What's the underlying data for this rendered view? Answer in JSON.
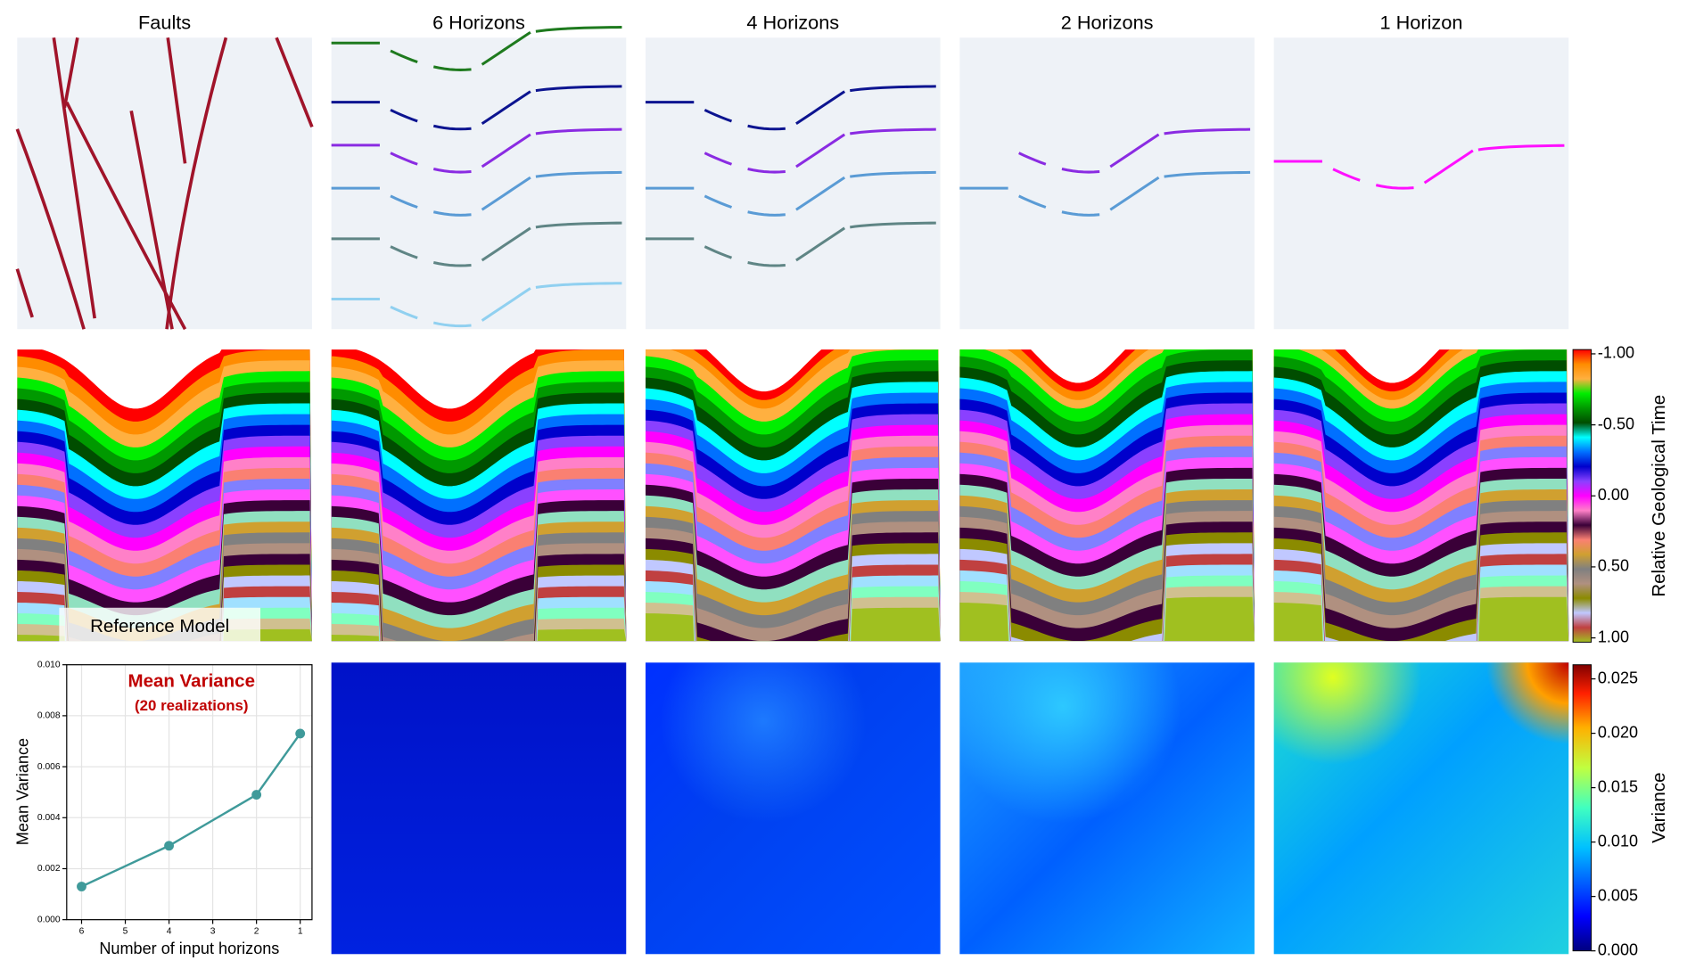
{
  "columns": [
    "Faults",
    "6 Horizons",
    "4 Horizons",
    "2 Horizons",
    "1 Horizon"
  ],
  "reference_label": "Reference Model",
  "chart_data": [
    {
      "type": "line",
      "title": "Mean Variance",
      "subtitle": "(20 realizations)",
      "x_label": "Number of input horizons",
      "y_label": "Mean Variance",
      "series": [
        {
          "name": "Mean Variance",
          "color": "#3f9a9a",
          "x": [
            6,
            4,
            2,
            1
          ],
          "values": [
            0.0013,
            0.0029,
            0.0049,
            0.0073
          ]
        }
      ],
      "xlim": [
        6.34,
        0.73
      ],
      "xticks": [
        6,
        5,
        4,
        3,
        2,
        1
      ],
      "ylim": [
        0,
        0.01
      ],
      "yticks": [
        {
          "value": 0,
          "label": "0.000"
        },
        {
          "value": 0.002,
          "label": "0.002"
        },
        {
          "value": 0.004,
          "label": "0.004"
        },
        {
          "value": 0.006,
          "label": "0.006"
        },
        {
          "value": 0.008,
          "label": "0.008"
        },
        {
          "value": 0.01,
          "label": "0.010"
        }
      ],
      "grid": true
    },
    {
      "type": "colorbar",
      "label": "Relative Geological Time",
      "ylim": [
        1.03,
        -1.03
      ],
      "yticks": [
        {
          "value": -1,
          "label": "-1.00"
        },
        {
          "value": -0.5,
          "label": "-0.50"
        },
        {
          "value": 0,
          "label": "0.00"
        },
        {
          "value": 0.5,
          "label": "0.50"
        },
        {
          "value": 1,
          "label": "1.00"
        }
      ]
    },
    {
      "type": "colorbar",
      "label": "Variance",
      "ylim": [
        0,
        0.0263
      ],
      "yticks": [
        {
          "value": 0,
          "label": "0.000"
        },
        {
          "value": 0.005,
          "label": "0.005"
        },
        {
          "value": 0.01,
          "label": "0.010"
        },
        {
          "value": 0.015,
          "label": "0.015"
        },
        {
          "value": 0.02,
          "label": "0.020"
        },
        {
          "value": 0.025,
          "label": "0.025"
        }
      ]
    }
  ]
}
